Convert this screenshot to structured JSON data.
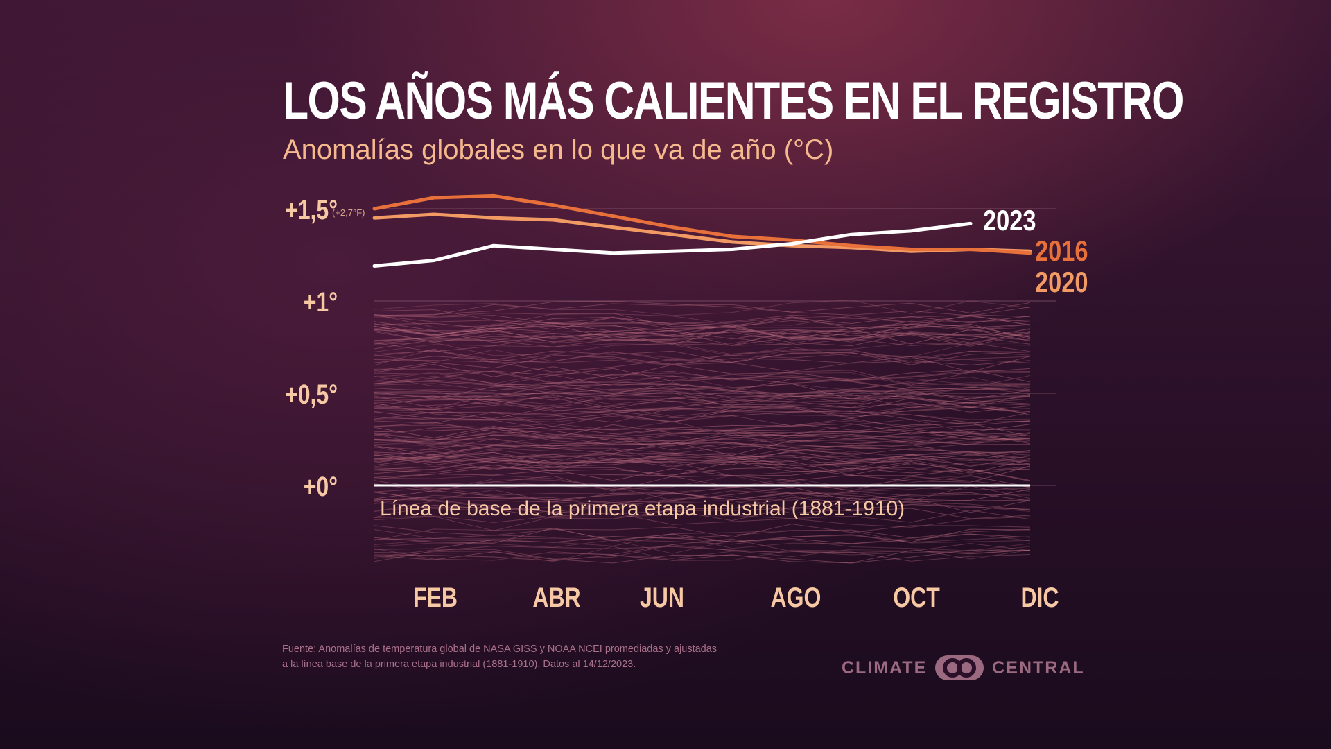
{
  "header": {
    "title": "LOS AÑOS MÁS CALIENTES EN EL REGISTRO",
    "subtitle": "Anomalías globales en lo que va de año (°C)"
  },
  "footer": {
    "source_line1": "Fuente: Anomalías de temperatura global de NASA GISS y NOAA NCEI promediadas y ajustadas",
    "source_line2": "a la línea base de la primera etapa industrial (1881-1910). Datos al 14/12/2023.",
    "logo_left": "CLIMATE",
    "logo_right": "CENTRAL"
  },
  "colors": {
    "y2023": "#ffffff",
    "y2016": "#e8713b",
    "y2020": "#f29a63",
    "baseline": "#ffffff",
    "historical": "#b86a7e",
    "tick_text": "#f6c9a4",
    "gridline": "#8a5a72"
  },
  "chart_data": {
    "type": "line",
    "title": "LOS AÑOS MÁS CALIENTES EN EL REGISTRO",
    "subtitle": "Anomalías globales en lo que va de año (°C)",
    "x_tick_labels": [
      "FEB",
      "ABR",
      "JUN",
      "AGO",
      "OCT",
      "DIC"
    ],
    "x_tick_months": [
      2,
      4,
      6,
      8,
      10,
      12
    ],
    "xlim": [
      1,
      12
    ],
    "ylim": [
      -0.43,
      1.6
    ],
    "y_ticks": [
      {
        "value": 1.5,
        "label": "+1,5°",
        "note": "(+2,7°F)"
      },
      {
        "value": 1.0,
        "label": "+1°"
      },
      {
        "value": 0.5,
        "label": "+0,5°"
      },
      {
        "value": 0.0,
        "label": "+0°"
      }
    ],
    "baseline": {
      "value": 0.0,
      "label": "Línea de base de la primera etapa industrial (1881-1910)"
    },
    "series": [
      {
        "name": "2016",
        "color": "#e8713b",
        "x": [
          1,
          2,
          3,
          4,
          5,
          6,
          7,
          8,
          9,
          10,
          11,
          12
        ],
        "values": [
          1.5,
          1.56,
          1.57,
          1.52,
          1.46,
          1.4,
          1.35,
          1.33,
          1.3,
          1.28,
          1.28,
          1.26
        ]
      },
      {
        "name": "2020",
        "color": "#f29a63",
        "x": [
          1,
          2,
          3,
          4,
          5,
          6,
          7,
          8,
          9,
          10,
          11,
          12
        ],
        "values": [
          1.45,
          1.47,
          1.45,
          1.44,
          1.4,
          1.36,
          1.32,
          1.3,
          1.29,
          1.27,
          1.28,
          1.27
        ]
      },
      {
        "name": "2023",
        "color": "#ffffff",
        "x": [
          1,
          2,
          3,
          4,
          5,
          6,
          7,
          8,
          9,
          10,
          11
        ],
        "values": [
          1.19,
          1.22,
          1.3,
          1.28,
          1.26,
          1.27,
          1.28,
          1.31,
          1.36,
          1.38,
          1.42
        ]
      }
    ]
  }
}
